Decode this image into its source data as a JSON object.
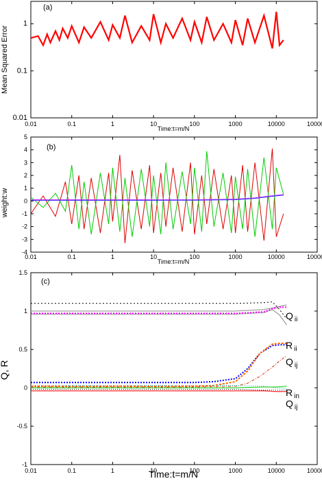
{
  "chart_data": [
    {
      "panel_label": "(a)",
      "type": "line",
      "xscale": "log",
      "yscale": "log",
      "xlabel": "Time:t=m/N",
      "ylabel": "Mean Squared Error",
      "xlim": [
        0.01,
        100000
      ],
      "ylim": [
        0.01,
        3
      ],
      "x_ticks": [
        "0.01",
        "0.1",
        "1",
        "10",
        "100",
        "1000",
        "10000",
        "100000"
      ],
      "y_ticks": [
        "0.01",
        "0.1",
        "1"
      ],
      "series": [
        {
          "color": "#ff0000",
          "x": [
            0.01,
            0.015,
            0.02,
            0.025,
            0.03,
            0.04,
            0.05,
            0.06,
            0.08,
            0.1,
            0.15,
            0.2,
            0.3,
            0.5,
            0.8,
            1,
            1.5,
            2,
            3,
            5,
            8,
            10,
            15,
            20,
            30,
            50,
            80,
            100,
            150,
            200,
            300,
            500,
            800,
            1000,
            1500,
            2000,
            3000,
            5000,
            8000,
            10000,
            12000,
            15000
          ],
          "values": [
            0.5,
            0.55,
            0.35,
            0.6,
            0.4,
            0.7,
            0.45,
            0.8,
            0.5,
            0.9,
            0.4,
            0.85,
            0.5,
            1.1,
            0.45,
            0.95,
            0.5,
            1.5,
            0.4,
            0.9,
            0.45,
            1.6,
            0.4,
            1.0,
            0.5,
            1.3,
            0.45,
            1.1,
            0.4,
            1.4,
            0.45,
            1.0,
            0.4,
            1.2,
            0.35,
            1.3,
            0.4,
            1.5,
            0.3,
            1.8,
            0.35,
            0.45
          ]
        }
      ]
    },
    {
      "panel_label": "(b)",
      "type": "line",
      "xscale": "log",
      "xlabel": "Time:t=m/N",
      "ylabel": "weight:w",
      "xlim": [
        0.01,
        100000
      ],
      "ylim": [
        -4,
        5
      ],
      "x_ticks": [
        "0.01",
        "0.1",
        "1",
        "10",
        "100",
        "1000",
        "10000",
        "100000"
      ],
      "y_ticks": [
        "5",
        "4",
        "3",
        "2",
        "1",
        "0",
        "-1",
        "-2",
        "-3",
        "-4"
      ],
      "series": [
        {
          "color": "#dd0000",
          "x": [
            0.01,
            0.02,
            0.04,
            0.07,
            0.1,
            0.15,
            0.2,
            0.3,
            0.5,
            0.8,
            1,
            1.5,
            2,
            3,
            5,
            8,
            10,
            15,
            20,
            30,
            50,
            80,
            100,
            150,
            200,
            300,
            500,
            800,
            1000,
            1500,
            2000,
            3000,
            5000,
            8000,
            10000,
            15000
          ],
          "values": [
            -1.0,
            0.4,
            -1.2,
            1.5,
            -1.8,
            2.0,
            -2.2,
            1.8,
            -2.5,
            2.2,
            -1.6,
            3.6,
            -3.3,
            2.4,
            -2.2,
            2.8,
            -2.5,
            2.2,
            -2.0,
            2.6,
            -2.4,
            3.0,
            -2.6,
            2.0,
            -1.8,
            2.5,
            -2.2,
            2.0,
            -2.5,
            2.8,
            -2.4,
            3.0,
            -3.1,
            4.1,
            -2.8,
            -1.0
          ]
        },
        {
          "color": "#00cc00",
          "x": [
            0.01,
            0.02,
            0.04,
            0.07,
            0.1,
            0.15,
            0.2,
            0.3,
            0.5,
            0.8,
            1,
            1.5,
            2,
            3,
            5,
            8,
            10,
            15,
            20,
            30,
            50,
            80,
            100,
            150,
            200,
            300,
            500,
            800,
            1000,
            1500,
            2000,
            3000,
            5000,
            8000,
            10000,
            15000
          ],
          "values": [
            0.3,
            -0.5,
            0.6,
            -0.8,
            2.8,
            -2.2,
            1.5,
            -2.6,
            2.2,
            -1.8,
            2.6,
            -2.4,
            1.8,
            -2.8,
            2.5,
            -2.0,
            2.0,
            -2.6,
            3.0,
            -2.2,
            2.3,
            -1.8,
            2.6,
            -2.4,
            3.9,
            -2.0,
            2.2,
            -2.5,
            1.9,
            -2.2,
            2.5,
            -2.8,
            3.4,
            -2.2,
            2.6,
            0.5
          ]
        },
        {
          "color": "#cc33ff",
          "x": [
            0.01,
            0.1,
            1,
            10,
            100,
            1000,
            3000,
            10000,
            15000
          ],
          "values": [
            0.1,
            0.1,
            0.1,
            0.1,
            0.1,
            0.15,
            0.25,
            0.45,
            0.5
          ]
        },
        {
          "color": "#3333ff",
          "x": [
            0.01,
            0.1,
            1,
            10,
            100,
            1000,
            3000,
            10000,
            15000
          ],
          "values": [
            0.05,
            0.05,
            0.05,
            0.05,
            0.06,
            0.1,
            0.2,
            0.4,
            0.45
          ]
        }
      ]
    },
    {
      "panel_label": "(c)",
      "type": "line",
      "xscale": "log",
      "xlabel": "Time:t=m/N",
      "ylabel": "Q, R",
      "xlim": [
        0.01,
        100000
      ],
      "ylim": [
        -1,
        1.5
      ],
      "x_ticks": [
        "0.01",
        "0.1",
        "1",
        "10",
        "100",
        "1000",
        "10000",
        "100000"
      ],
      "y_ticks": [
        "1.5",
        "1",
        "0.5",
        "0",
        "-0.5",
        "-1"
      ],
      "annotations": [
        {
          "main": "Q",
          "sub": "ii"
        },
        {
          "main": "R",
          "sub": "ii"
        },
        {
          "main": "Q",
          "sub": "ij"
        },
        {
          "main": "R",
          "sub": "in"
        },
        {
          "main": "Q",
          "sub": "ij"
        }
      ],
      "series": [
        {
          "color": "#000000",
          "dash": "2,3",
          "x": [
            0.01,
            1,
            100,
            1000,
            5000,
            8000,
            12000,
            18000
          ],
          "values": [
            1.1,
            1.1,
            1.1,
            1.1,
            1.11,
            1.12,
            1.02,
            0.9
          ]
        },
        {
          "color": "#888888",
          "dash": "",
          "x": [
            0.01,
            1,
            100,
            1000,
            5000,
            8000,
            12000,
            18000
          ],
          "values": [
            1.0,
            1.0,
            1.0,
            1.0,
            1.02,
            1.04,
            1.06,
            1.08
          ]
        },
        {
          "color": "#888888",
          "dash": "",
          "x": [
            0.01,
            1,
            100,
            1000,
            5000,
            8000,
            12000,
            18000
          ],
          "values": [
            0.96,
            0.96,
            0.96,
            0.96,
            0.98,
            1.02,
            0.95,
            0.82
          ]
        },
        {
          "color": "#ff00ff",
          "dash": "2,2",
          "x": [
            0.01,
            1,
            100,
            1000,
            5000,
            8000,
            12000,
            18000
          ],
          "values": [
            0.97,
            0.97,
            0.97,
            0.97,
            0.99,
            1.03,
            1.05,
            1.05
          ]
        },
        {
          "color": "#0000ff",
          "dash": "2,2",
          "x": [
            0.01,
            1,
            100,
            300,
            1000,
            2000,
            4000,
            8000,
            12000,
            18000
          ],
          "values": [
            0.07,
            0.07,
            0.07,
            0.08,
            0.12,
            0.25,
            0.45,
            0.55,
            0.56,
            0.56
          ]
        },
        {
          "color": "#ff6600",
          "dash": "3,2",
          "x": [
            0.01,
            1,
            100,
            300,
            1000,
            2000,
            4000,
            8000,
            12000,
            18000
          ],
          "values": [
            0.02,
            0.02,
            0.02,
            0.03,
            0.08,
            0.22,
            0.45,
            0.57,
            0.58,
            0.58
          ]
        },
        {
          "color": "#cc3300",
          "dash": "4,2,1,2",
          "x": [
            0.01,
            1,
            100,
            1000,
            2000,
            4000,
            8000,
            12000,
            18000
          ],
          "values": [
            0.01,
            0.01,
            0.01,
            0.02,
            0.06,
            0.15,
            0.27,
            0.35,
            0.42
          ]
        },
        {
          "color": "#00cc00",
          "dash": "",
          "x": [
            0.01,
            1,
            100,
            1000,
            5000,
            10000,
            18000
          ],
          "values": [
            0.0,
            0.0,
            0.0,
            0.0,
            0.01,
            0.01,
            0.02
          ]
        },
        {
          "color": "#00aaaa",
          "dash": "1,2",
          "x": [
            0.01,
            1,
            100,
            1000,
            5000,
            10000,
            18000
          ],
          "values": [
            0.03,
            0.03,
            0.03,
            0.03,
            0.02,
            0.0,
            -0.01
          ]
        },
        {
          "color": "#000000",
          "dash": "1,2",
          "x": [
            0.01,
            1,
            100,
            1000,
            5000,
            10000,
            18000
          ],
          "values": [
            -0.02,
            -0.02,
            -0.02,
            -0.02,
            -0.03,
            -0.03,
            -0.03
          ]
        },
        {
          "color": "#ff0000",
          "dash": "",
          "x": [
            0.01,
            1,
            100,
            1000,
            5000,
            10000,
            18000
          ],
          "values": [
            -0.04,
            -0.04,
            -0.04,
            -0.04,
            -0.04,
            -0.05,
            -0.05
          ]
        }
      ]
    }
  ]
}
